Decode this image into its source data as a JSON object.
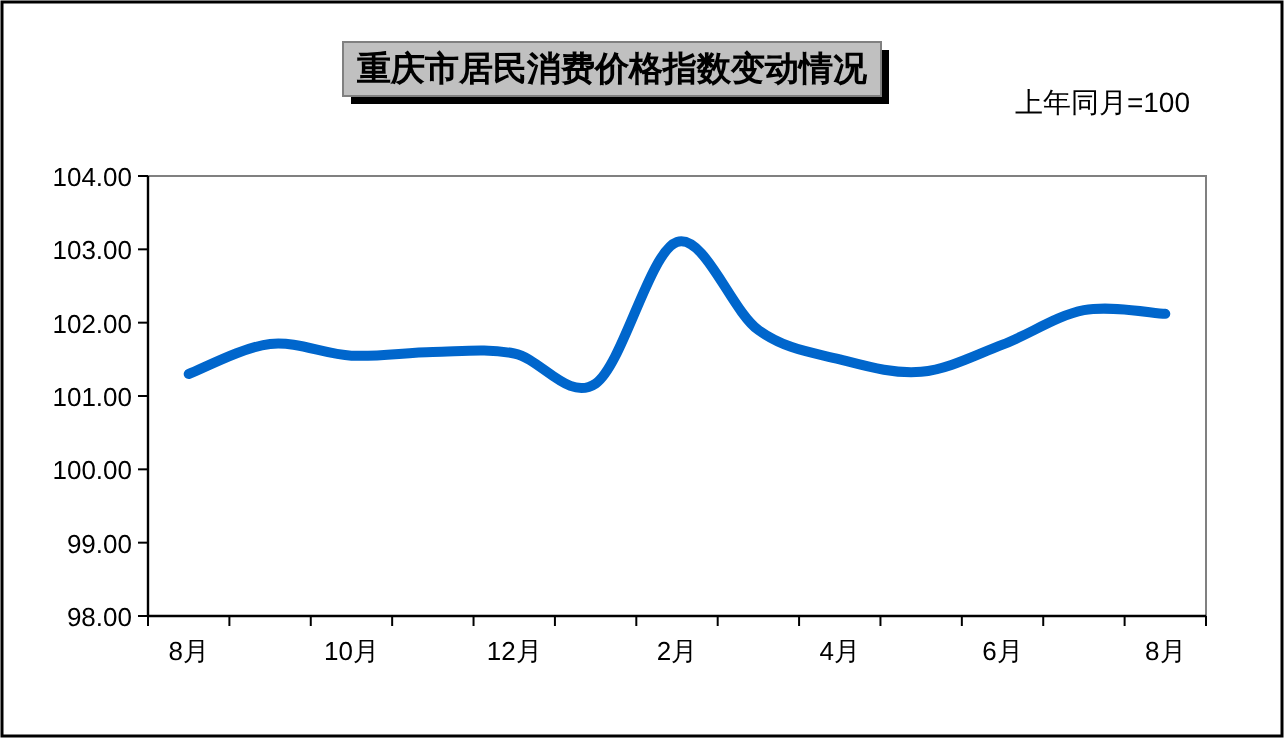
{
  "chart_data": {
    "type": "line",
    "title": "重庆市居民消费价格指数变动情况",
    "annotations": [
      "上年同月=100"
    ],
    "categories": [
      "8月",
      null,
      "10月",
      null,
      "12月",
      null,
      "2月",
      null,
      "4月",
      null,
      "6月",
      null,
      "8月"
    ],
    "series": [
      {
        "color": "#0066cc",
        "values": [
          101.3,
          101.71,
          101.55,
          101.6,
          101.58,
          101.17,
          103.1,
          101.9,
          101.5,
          101.33,
          101.7,
          102.17,
          102.12
        ]
      }
    ],
    "ylim": [
      98,
      104
    ],
    "yticks": [
      {
        "value": 98,
        "label": "98.00"
      },
      {
        "value": 99,
        "label": "99.00"
      },
      {
        "value": 100,
        "label": "100.00"
      },
      {
        "value": 101,
        "label": "101.00"
      },
      {
        "value": 102,
        "label": "102.00"
      },
      {
        "value": 103,
        "label": "103.00"
      },
      {
        "value": 104,
        "label": "104.00"
      }
    ],
    "grid": false,
    "marker": "none",
    "line_style": "solid"
  }
}
